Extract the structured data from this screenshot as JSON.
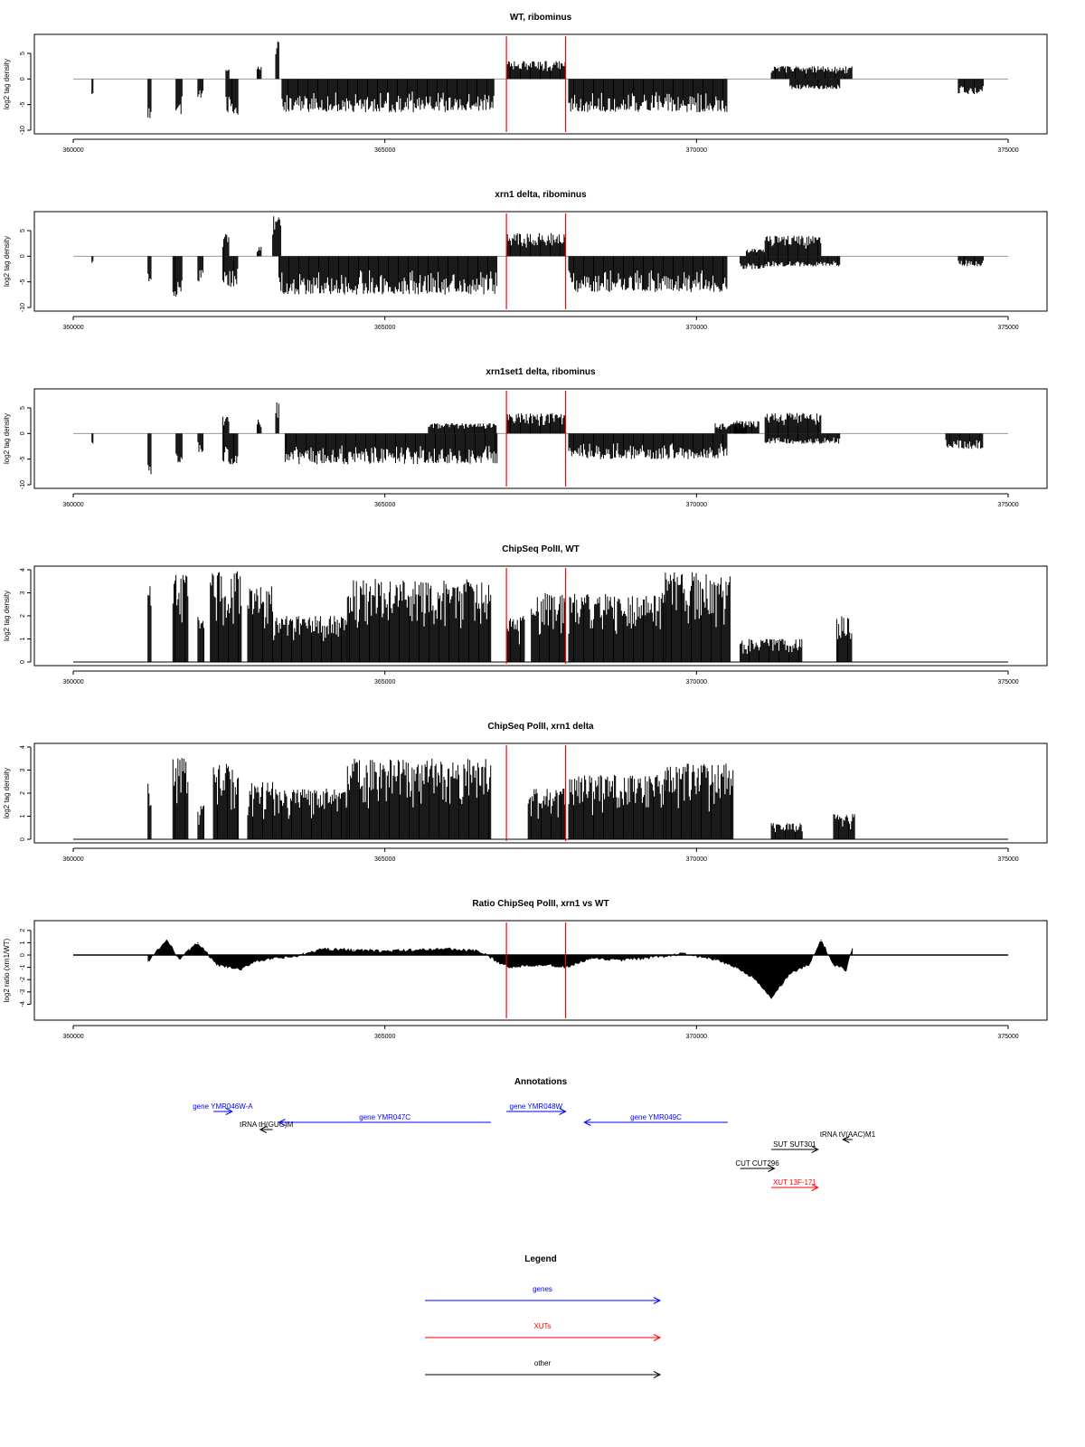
{
  "figure": {
    "annotations_title": "Annotations",
    "legend_title": "Legend"
  },
  "colors": {
    "gene": "#0000ff",
    "xut": "#ff0000",
    "other": "#000000",
    "marker": "#ff0000",
    "baseline": "#999999"
  },
  "chart_data": [
    {
      "type": "bar",
      "title": "WT, ribominus",
      "ylabel": "log2 tag density",
      "xlim": [
        360000,
        375000
      ],
      "ylim": [
        -10,
        8
      ],
      "yticks": [
        -10,
        -5,
        0,
        5
      ],
      "xticks": [
        360000,
        365000,
        370000,
        375000
      ],
      "xtick_labels": [
        "360000",
        "365000",
        "370000",
        "375000"
      ],
      "markers_x": [
        366950,
        367900
      ],
      "segments": [
        {
          "x": [
            360300,
            360320
          ],
          "amp": -3.5
        },
        {
          "x": [
            361200,
            361260
          ],
          "amp": -8
        },
        {
          "x": [
            361650,
            361750
          ],
          "amp": -7
        },
        {
          "x": [
            362000,
            362080
          ],
          "amp": -4
        },
        {
          "x": [
            362450,
            362650
          ],
          "amp": -7
        },
        {
          "x": [
            362450,
            362500
          ],
          "amp": 2
        },
        {
          "x": [
            362950,
            363020
          ],
          "amp": 2.5
        },
        {
          "x": [
            363250,
            363310
          ],
          "amp": 7.5
        },
        {
          "x": [
            363350,
            366750
          ],
          "amp": -6.5
        },
        {
          "x": [
            366950,
            367900
          ],
          "amp": 3.5
        },
        {
          "x": [
            367950,
            370500
          ],
          "amp": -6.5
        },
        {
          "x": [
            371200,
            372500
          ],
          "amp": 2.5
        },
        {
          "x": [
            371500,
            372300
          ],
          "amp": -2
        },
        {
          "x": [
            374200,
            374600
          ],
          "amp": -3
        }
      ]
    },
    {
      "type": "bar",
      "title": "xrn1 delta, ribominus",
      "ylabel": "log2 tag density",
      "xlim": [
        360000,
        375000
      ],
      "ylim": [
        -10,
        8
      ],
      "yticks": [
        -10,
        -5,
        0,
        5
      ],
      "xticks": [
        360000,
        365000,
        370000,
        375000
      ],
      "xtick_labels": [
        "360000",
        "365000",
        "370000",
        "375000"
      ],
      "markers_x": [
        366950,
        367900
      ],
      "segments": [
        {
          "x": [
            360300,
            360320
          ],
          "amp": -1.5
        },
        {
          "x": [
            361200,
            361260
          ],
          "amp": -6
        },
        {
          "x": [
            361600,
            361750
          ],
          "amp": -8
        },
        {
          "x": [
            362000,
            362080
          ],
          "amp": -5
        },
        {
          "x": [
            362400,
            362650
          ],
          "amp": -6
        },
        {
          "x": [
            362400,
            362500
          ],
          "amp": 4.5
        },
        {
          "x": [
            362950,
            363020
          ],
          "amp": 2
        },
        {
          "x": [
            363200,
            363330
          ],
          "amp": 8
        },
        {
          "x": [
            363300,
            366800
          ],
          "amp": -7.5
        },
        {
          "x": [
            366950,
            367900
          ],
          "amp": 4.5
        },
        {
          "x": [
            367950,
            370500
          ],
          "amp": -7
        },
        {
          "x": [
            370700,
            371100
          ],
          "amp": -2.5
        },
        {
          "x": [
            370800,
            371100
          ],
          "amp": 1.5
        },
        {
          "x": [
            371100,
            372000
          ],
          "amp": 4
        },
        {
          "x": [
            371100,
            372300
          ],
          "amp": -2
        },
        {
          "x": [
            374200,
            374600
          ],
          "amp": -2
        }
      ]
    },
    {
      "type": "bar",
      "title": "xrn1set1 delta, ribominus",
      "ylabel": "log2 tag density",
      "xlim": [
        360000,
        375000
      ],
      "ylim": [
        -10,
        8
      ],
      "yticks": [
        -10,
        -5,
        0,
        5
      ],
      "xticks": [
        360000,
        365000,
        370000,
        375000
      ],
      "xtick_labels": [
        "360000",
        "365000",
        "370000",
        "375000"
      ],
      "markers_x": [
        366950,
        367900
      ],
      "segments": [
        {
          "x": [
            360300,
            360320
          ],
          "amp": -2
        },
        {
          "x": [
            361200,
            361260
          ],
          "amp": -8
        },
        {
          "x": [
            361650,
            361750
          ],
          "amp": -6
        },
        {
          "x": [
            362000,
            362080
          ],
          "amp": -4
        },
        {
          "x": [
            362400,
            362650
          ],
          "amp": -6
        },
        {
          "x": [
            362400,
            362500
          ],
          "amp": 3.5
        },
        {
          "x": [
            362950,
            363020
          ],
          "amp": 3
        },
        {
          "x": [
            363250,
            363310
          ],
          "amp": 7.5
        },
        {
          "x": [
            363400,
            366800
          ],
          "amp": -6
        },
        {
          "x": [
            365700,
            366800
          ],
          "amp": 2
        },
        {
          "x": [
            366950,
            367900
          ],
          "amp": 4
        },
        {
          "x": [
            367950,
            370500
          ],
          "amp": -5
        },
        {
          "x": [
            370300,
            370800
          ],
          "amp": 2
        },
        {
          "x": [
            370600,
            371000
          ],
          "amp": 2.5
        },
        {
          "x": [
            371100,
            372000
          ],
          "amp": 4
        },
        {
          "x": [
            371100,
            372300
          ],
          "amp": -2
        },
        {
          "x": [
            374000,
            374600
          ],
          "amp": -3
        }
      ]
    },
    {
      "type": "bar",
      "title": "ChipSeq PolII, WT",
      "ylabel": "log2 tag density",
      "xlim": [
        360000,
        375000
      ],
      "ylim": [
        0,
        4
      ],
      "yticks": [
        0,
        1,
        2,
        3,
        4
      ],
      "xticks": [
        360000,
        365000,
        370000,
        375000
      ],
      "xtick_labels": [
        "360000",
        "365000",
        "370000",
        "375000"
      ],
      "markers_x": [
        366950,
        367900
      ],
      "segments": [
        {
          "x": [
            361200,
            361260
          ],
          "amp": 3.3
        },
        {
          "x": [
            361600,
            361850
          ],
          "amp": 3.8
        },
        {
          "x": [
            362000,
            362100
          ],
          "amp": 2
        },
        {
          "x": [
            362200,
            362700
          ],
          "amp": 4
        },
        {
          "x": [
            362800,
            363200
          ],
          "amp": 3.3
        },
        {
          "x": [
            363200,
            364400
          ],
          "amp": 2
        },
        {
          "x": [
            364400,
            366700
          ],
          "amp": 3.6
        },
        {
          "x": [
            366950,
            367250
          ],
          "amp": 2
        },
        {
          "x": [
            367350,
            367900
          ],
          "amp": 3
        },
        {
          "x": [
            367950,
            369500
          ],
          "amp": 3
        },
        {
          "x": [
            369500,
            370550
          ],
          "amp": 3.9
        },
        {
          "x": [
            370700,
            371700
          ],
          "amp": 1
        },
        {
          "x": [
            372250,
            372500
          ],
          "amp": 2
        }
      ]
    },
    {
      "type": "bar",
      "title": "ChipSeq PolII, xrn1 delta",
      "ylabel": "log2 tag density",
      "xlim": [
        360000,
        375000
      ],
      "ylim": [
        0,
        4
      ],
      "yticks": [
        0,
        1,
        2,
        3,
        4
      ],
      "xticks": [
        360000,
        365000,
        370000,
        375000
      ],
      "xtick_labels": [
        "360000",
        "365000",
        "370000",
        "375000"
      ],
      "markers_x": [
        366950,
        367900
      ],
      "segments": [
        {
          "x": [
            361200,
            361260
          ],
          "amp": 2.7
        },
        {
          "x": [
            361600,
            361850
          ],
          "amp": 3.6
        },
        {
          "x": [
            362000,
            362100
          ],
          "amp": 1.5
        },
        {
          "x": [
            362250,
            362650
          ],
          "amp": 3.3
        },
        {
          "x": [
            362800,
            363200
          ],
          "amp": 2.5
        },
        {
          "x": [
            363200,
            364400
          ],
          "amp": 2.2
        },
        {
          "x": [
            364400,
            366700
          ],
          "amp": 3.5
        },
        {
          "x": [
            367300,
            367900
          ],
          "amp": 2.2
        },
        {
          "x": [
            367950,
            369500
          ],
          "amp": 2.8
        },
        {
          "x": [
            369500,
            370600
          ],
          "amp": 3.3
        },
        {
          "x": [
            371200,
            371700
          ],
          "amp": 0.7
        },
        {
          "x": [
            372200,
            372550
          ],
          "amp": 1.1
        }
      ]
    },
    {
      "type": "area",
      "title": "Ratio ChipSeq PolII, xrn1 vs WT",
      "ylabel": "log2 ratio (xrn1/WT)",
      "xlim": [
        360000,
        375000
      ],
      "ylim": [
        -5,
        2.5
      ],
      "yticks": [
        -4,
        -3,
        -2,
        -1,
        0,
        1,
        2
      ],
      "xticks": [
        360000,
        365000,
        370000,
        375000
      ],
      "xtick_labels": [
        "360000",
        "365000",
        "370000",
        "375000"
      ],
      "markers_x": [
        366950,
        367900
      ],
      "x": [
        361200,
        361500,
        361700,
        362000,
        362300,
        362700,
        362900,
        363200,
        363600,
        364000,
        364500,
        365000,
        365500,
        366000,
        366500,
        366800,
        367000,
        367300,
        367600,
        367900,
        368300,
        368800,
        369300,
        369800,
        370300,
        370600,
        370900,
        371200,
        371500,
        371800,
        372000,
        372200,
        372400,
        372500
      ],
      "values": [
        -0.5,
        1.2,
        -0.3,
        1.0,
        -0.8,
        -1.2,
        -0.5,
        -0.3,
        -0.1,
        0.5,
        0.4,
        0.3,
        0.4,
        0.5,
        0.3,
        -0.5,
        -1.0,
        -0.8,
        -0.8,
        -1.0,
        -0.3,
        -0.4,
        -0.2,
        0.1,
        -0.4,
        -0.9,
        -1.8,
        -3.5,
        -1.5,
        -0.8,
        1.2,
        -0.8,
        -1.2,
        0.5
      ]
    }
  ],
  "annotations": [
    {
      "label": "gene YMR046W-A",
      "kind": "gene",
      "x1": 362250,
      "x2": 362550
    },
    {
      "label": "tRNA tH(GUG)M",
      "kind": "other",
      "x1": 363200,
      "x2": 363000
    },
    {
      "label": "gene YMR047C",
      "kind": "gene",
      "x1": 366700,
      "x2": 363300
    },
    {
      "label": "gene YMR048W",
      "kind": "gene",
      "x1": 366950,
      "x2": 367900
    },
    {
      "label": "gene YMR049C",
      "kind": "gene",
      "x1": 370500,
      "x2": 368200
    },
    {
      "label": "tRNA tV(AAC)M1",
      "kind": "other",
      "x1": 372500,
      "x2": 372350
    },
    {
      "label": "SUT SUT301",
      "kind": "other",
      "x1": 371200,
      "x2": 371950
    },
    {
      "label": "CUT CUT296",
      "kind": "other",
      "x1": 370700,
      "x2": 371250
    },
    {
      "label": "XUT 13F-171",
      "kind": "xut",
      "x1": 371200,
      "x2": 371950
    }
  ],
  "legend": [
    {
      "label": "genes",
      "kind": "gene"
    },
    {
      "label": "XUTs",
      "kind": "xut"
    },
    {
      "label": "other",
      "kind": "other"
    }
  ]
}
